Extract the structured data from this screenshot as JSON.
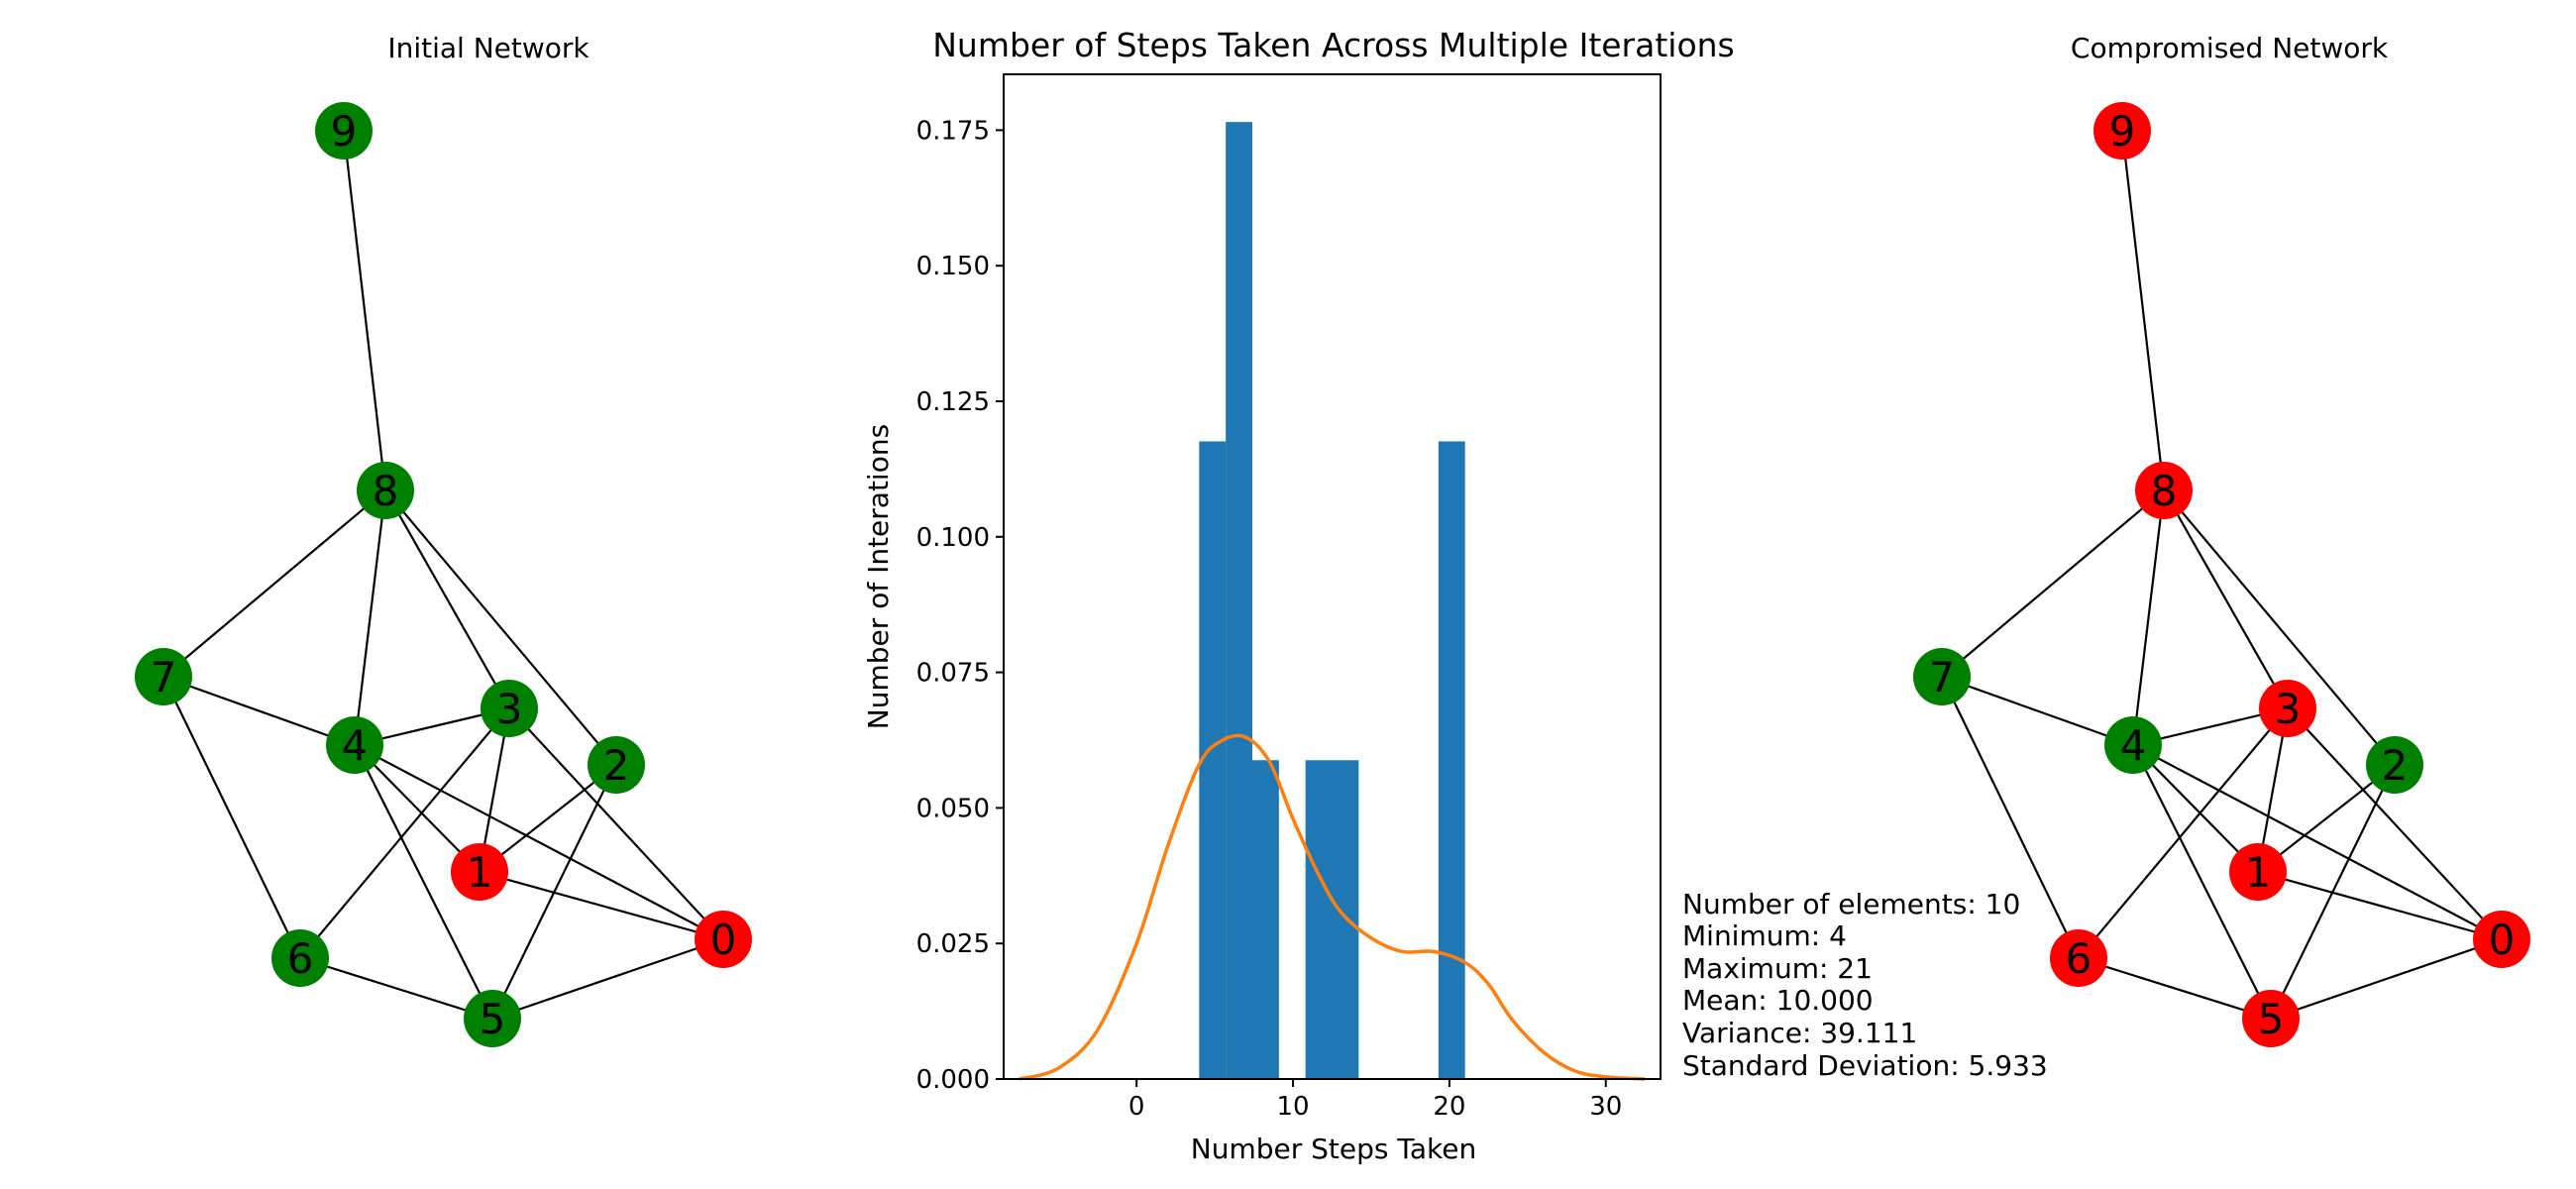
{
  "colors": {
    "healthy_node": "#008000",
    "compromised_node": "#ff0000",
    "histogram_bar": "#1f77b4",
    "kde_line": "#ff7f0e",
    "edge": "#000000"
  },
  "chart_data": [
    {
      "type": "graph",
      "title": "Initial Network",
      "nodes": [
        "0",
        "1",
        "2",
        "3",
        "4",
        "5",
        "6",
        "7",
        "8",
        "9"
      ],
      "edges": [
        [
          9,
          8
        ],
        [
          8,
          7
        ],
        [
          8,
          4
        ],
        [
          8,
          3
        ],
        [
          8,
          2
        ],
        [
          7,
          4
        ],
        [
          7,
          6
        ],
        [
          4,
          3
        ],
        [
          4,
          1
        ],
        [
          4,
          5
        ],
        [
          4,
          0
        ],
        [
          3,
          1
        ],
        [
          3,
          6
        ],
        [
          3,
          0
        ],
        [
          2,
          1
        ],
        [
          2,
          5
        ],
        [
          1,
          0
        ],
        [
          6,
          5
        ],
        [
          5,
          0
        ]
      ],
      "compromised": [
        0,
        1
      ]
    },
    {
      "type": "bar",
      "title": "Number of Steps Taken Across Multiple Iterations",
      "xlabel": "Number Steps Taken",
      "ylabel": "Number of Interations",
      "xlim": [
        -8.5,
        33.5
      ],
      "ylim": [
        0,
        0.1853
      ],
      "xticks": [
        0,
        10,
        20,
        30
      ],
      "yticks": [
        0.0,
        0.025,
        0.05,
        0.075,
        0.1,
        0.125,
        0.15,
        0.175
      ],
      "ytick_labels": [
        "0.000",
        "0.025",
        "0.050",
        "0.075",
        "0.100",
        "0.125",
        "0.150",
        "0.175"
      ],
      "bins": [
        {
          "x0": 4.0,
          "x1": 5.7,
          "value": 0.1176
        },
        {
          "x0": 5.7,
          "x1": 7.4,
          "value": 0.1765
        },
        {
          "x0": 7.4,
          "x1": 9.1,
          "value": 0.0588
        },
        {
          "x0": 9.1,
          "x1": 10.8,
          "value": 0.0
        },
        {
          "x0": 10.8,
          "x1": 12.5,
          "value": 0.0588
        },
        {
          "x0": 12.5,
          "x1": 14.2,
          "value": 0.0588
        },
        {
          "x0": 14.2,
          "x1": 15.9,
          "value": 0.0
        },
        {
          "x0": 15.9,
          "x1": 17.6,
          "value": 0.0
        },
        {
          "x0": 17.6,
          "x1": 19.3,
          "value": 0.0
        },
        {
          "x0": 19.3,
          "x1": 21.0,
          "value": 0.1176
        }
      ],
      "kde": {
        "x": [
          -7.5,
          -5,
          -2.5,
          0,
          2,
          4,
          5.5,
          7,
          8.5,
          10,
          11.5,
          13,
          15,
          17,
          19,
          21,
          22.5,
          24,
          26,
          28,
          30,
          32.5
        ],
        "y": [
          0.0,
          0.002,
          0.009,
          0.025,
          0.043,
          0.058,
          0.0625,
          0.063,
          0.0585,
          0.048,
          0.0385,
          0.031,
          0.026,
          0.0235,
          0.0235,
          0.0215,
          0.0175,
          0.011,
          0.005,
          0.0015,
          0.0004,
          0.0
        ]
      },
      "stats": [
        "Number of elements: 10",
        "Minimum: 4",
        "Maximum: 21",
        "Mean: 10.000",
        "Variance: 39.111",
        "Standard Deviation: 5.933"
      ]
    },
    {
      "type": "graph",
      "title": "Compromised Network",
      "nodes": [
        "0",
        "1",
        "2",
        "3",
        "4",
        "5",
        "6",
        "7",
        "8",
        "9"
      ],
      "edges": [
        [
          9,
          8
        ],
        [
          8,
          7
        ],
        [
          8,
          4
        ],
        [
          8,
          3
        ],
        [
          8,
          2
        ],
        [
          7,
          4
        ],
        [
          7,
          6
        ],
        [
          4,
          3
        ],
        [
          4,
          1
        ],
        [
          4,
          5
        ],
        [
          4,
          0
        ],
        [
          3,
          1
        ],
        [
          3,
          6
        ],
        [
          3,
          0
        ],
        [
          2,
          1
        ],
        [
          2,
          5
        ],
        [
          1,
          0
        ],
        [
          6,
          5
        ],
        [
          5,
          0
        ]
      ],
      "compromised": [
        0,
        1,
        3,
        5,
        6,
        8,
        9
      ]
    }
  ]
}
